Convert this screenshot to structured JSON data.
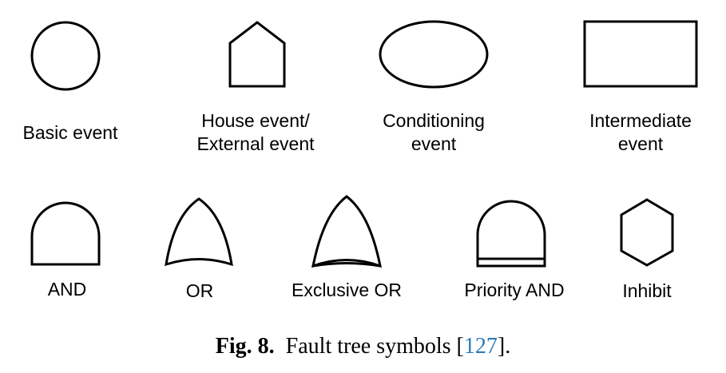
{
  "symbols": [
    {
      "name": "basic-event",
      "line1": "Basic event",
      "line2": ""
    },
    {
      "name": "house-event",
      "line1": "House event/",
      "line2": "External event"
    },
    {
      "name": "conditioning-event",
      "line1": "Conditioning",
      "line2": "event"
    },
    {
      "name": "intermediate-event",
      "line1": "Intermediate",
      "line2": "event"
    },
    {
      "name": "and-gate",
      "line1": "AND",
      "line2": ""
    },
    {
      "name": "or-gate",
      "line1": "OR",
      "line2": ""
    },
    {
      "name": "exclusive-or-gate",
      "line1": "Exclusive OR",
      "line2": ""
    },
    {
      "name": "priority-and-gate",
      "line1": "Priority AND",
      "line2": ""
    },
    {
      "name": "inhibit-gate",
      "line1": "Inhibit",
      "line2": ""
    }
  ],
  "caption": {
    "fig": "Fig. 8.",
    "text": "Fault tree symbols [",
    "ref": "127",
    "end": "]."
  }
}
